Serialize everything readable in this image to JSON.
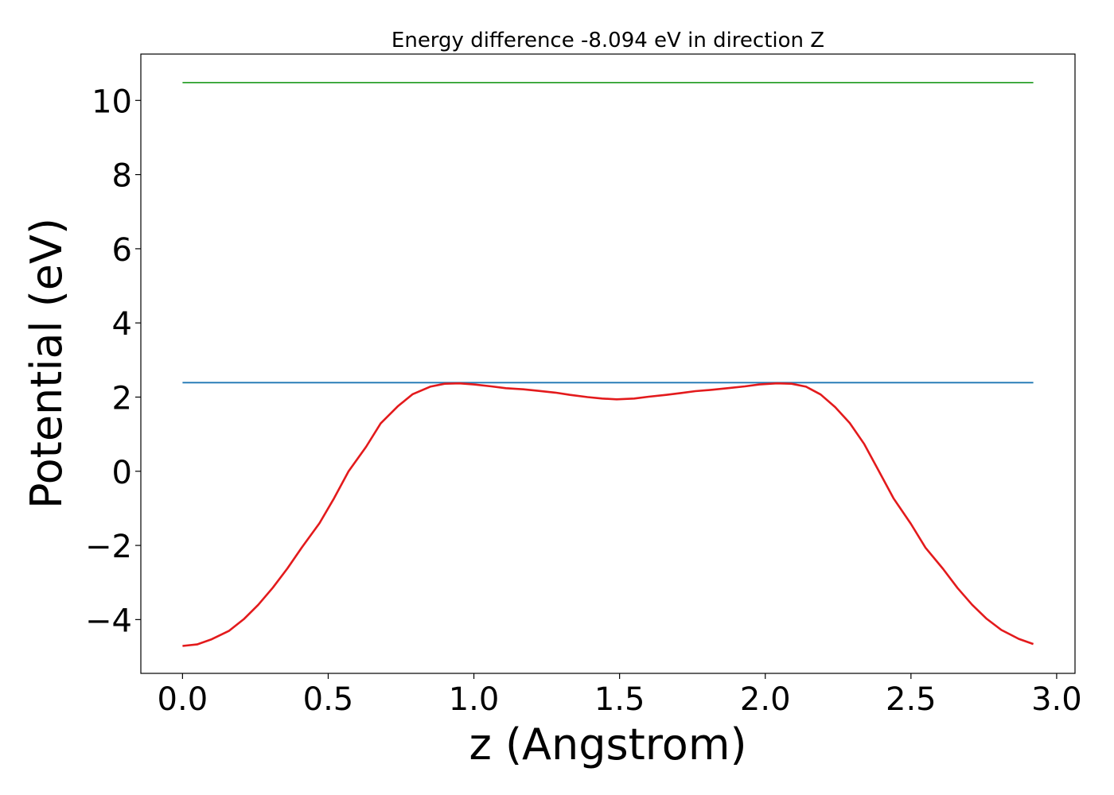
{
  "chart_data": {
    "type": "line",
    "title": "Energy difference -8.094 eV in direction Z",
    "xlabel": "z (Angstrom)",
    "ylabel": "Potential (eV)",
    "xlim": [
      -0.143,
      3.063
    ],
    "ylim": [
      -5.45,
      11.25
    ],
    "grid": false,
    "legend": "none",
    "xticks": [
      0.0,
      0.5,
      1.0,
      1.5,
      2.0,
      2.5,
      3.0
    ],
    "xtick_labels": [
      "0.0",
      "0.5",
      "1.0",
      "1.5",
      "2.0",
      "2.5",
      "3.0"
    ],
    "yticks": [
      -4,
      -2,
      0,
      2,
      4,
      6,
      8,
      10
    ],
    "ytick_labels": [
      "−4",
      "−2",
      "0",
      "2",
      "4",
      "6",
      "8",
      "10"
    ],
    "series": [
      {
        "color": "#1f77b4",
        "x": [
          0.0,
          2.92
        ],
        "y": [
          2.39,
          2.39
        ]
      },
      {
        "color": "#2ca02c",
        "x": [
          0.0,
          2.92
        ],
        "y": [
          10.48,
          10.48
        ]
      },
      {
        "color": "#e31a1c",
        "x": [
          0.0,
          0.05,
          0.1,
          0.16,
          0.21,
          0.26,
          0.31,
          0.36,
          0.41,
          0.47,
          0.52,
          0.57,
          0.63,
          0.68,
          0.74,
          0.79,
          0.85,
          0.9,
          0.95,
          1.0,
          1.06,
          1.11,
          1.17,
          1.22,
          1.28,
          1.33,
          1.39,
          1.44,
          1.49,
          1.55,
          1.6,
          1.66,
          1.71,
          1.76,
          1.82,
          1.87,
          1.93,
          1.98,
          2.04,
          2.09,
          2.14,
          2.19,
          2.24,
          2.29,
          2.34,
          2.39,
          2.44,
          2.5,
          2.55,
          2.61,
          2.66,
          2.71,
          2.76,
          2.81,
          2.87,
          2.92
        ],
        "y": [
          -4.71,
          -4.67,
          -4.53,
          -4.3,
          -3.99,
          -3.6,
          -3.14,
          -2.62,
          -2.05,
          -1.4,
          -0.73,
          0.0,
          0.66,
          1.29,
          1.76,
          2.08,
          2.28,
          2.36,
          2.37,
          2.34,
          2.29,
          2.24,
          2.21,
          2.17,
          2.12,
          2.06,
          2.0,
          1.96,
          1.94,
          1.96,
          2.01,
          2.06,
          2.11,
          2.16,
          2.2,
          2.24,
          2.29,
          2.34,
          2.37,
          2.36,
          2.28,
          2.07,
          1.73,
          1.3,
          0.73,
          0.0,
          -0.73,
          -1.42,
          -2.06,
          -2.63,
          -3.15,
          -3.6,
          -3.98,
          -4.28,
          -4.52,
          -4.66
        ]
      }
    ]
  }
}
